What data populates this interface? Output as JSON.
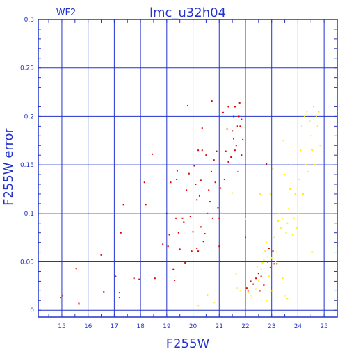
{
  "chart_data": {
    "type": "scatter",
    "title": "lmc_u32h04",
    "subtitle": "WF2",
    "xlabel": "F255W",
    "ylabel": "F255W error",
    "xlim": [
      14.1,
      25.5
    ],
    "ylim": [
      -0.007,
      0.3
    ],
    "grid": true,
    "x_ticks": [
      15,
      16,
      17,
      18,
      19,
      20,
      21,
      22,
      23,
      24,
      25
    ],
    "y_ticks": [
      0,
      0.05,
      0.1,
      0.15,
      0.2,
      0.25,
      0.3
    ],
    "y_tick_labels": [
      "0",
      "0.05",
      "0.1",
      "0.15",
      "0.2",
      "0.25",
      "0.3"
    ],
    "colors": {
      "axes": "#2233cc",
      "grid": "#2233cc",
      "text": "#2233cc",
      "red": "#dd0000",
      "yellow": "#ffee00"
    },
    "series": [
      {
        "color": "#dd0000",
        "points": [
          [
            14.95,
            0.013
          ],
          [
            15.03,
            0.015
          ],
          [
            15.55,
            0.043
          ],
          [
            15.65,
            0.007
          ],
          [
            16.5,
            0.057
          ],
          [
            16.6,
            0.019
          ],
          [
            17.05,
            0.035
          ],
          [
            17.2,
            0.018
          ],
          [
            17.2,
            0.013
          ],
          [
            17.25,
            0.08
          ],
          [
            17.35,
            0.109
          ],
          [
            17.75,
            0.033
          ],
          [
            17.95,
            0.032
          ],
          [
            18.15,
            0.132
          ],
          [
            18.2,
            0.109
          ],
          [
            18.45,
            0.161
          ],
          [
            18.55,
            0.033
          ],
          [
            18.85,
            0.068
          ],
          [
            19.0,
            0.1
          ],
          [
            19.05,
            0.066
          ],
          [
            19.1,
            0.078
          ],
          [
            19.15,
            0.132
          ],
          [
            19.25,
            0.042
          ],
          [
            19.3,
            0.031
          ],
          [
            19.35,
            0.095
          ],
          [
            19.38,
            0.135
          ],
          [
            19.4,
            0.144
          ],
          [
            19.45,
            0.08
          ],
          [
            19.5,
            0.063
          ],
          [
            19.6,
            0.095
          ],
          [
            19.65,
            0.091
          ],
          [
            19.7,
            0.049
          ],
          [
            19.75,
            0.124
          ],
          [
            19.8,
            0.211
          ],
          [
            19.85,
            0.141
          ],
          [
            19.9,
            0.097
          ],
          [
            19.95,
            0.061
          ],
          [
            20.0,
            0.081
          ],
          [
            20.05,
            0.149
          ],
          [
            20.1,
            0.13
          ],
          [
            20.15,
            0.064
          ],
          [
            20.15,
            0.114
          ],
          [
            20.2,
            0.165
          ],
          [
            20.2,
            0.061
          ],
          [
            20.25,
            0.118
          ],
          [
            20.3,
            0.086
          ],
          [
            20.3,
            0.134
          ],
          [
            20.35,
            0.188
          ],
          [
            20.35,
            0.165
          ],
          [
            20.4,
            0.071
          ],
          [
            20.45,
            0.079
          ],
          [
            20.5,
            0.16
          ],
          [
            20.55,
            0.1
          ],
          [
            20.6,
            0.124
          ],
          [
            20.65,
            0.112
          ],
          [
            20.7,
            0.143
          ],
          [
            20.72,
            0.216
          ],
          [
            20.75,
            0.095
          ],
          [
            20.8,
            0.155
          ],
          [
            20.85,
            0.132
          ],
          [
            20.9,
            0.164
          ],
          [
            20.95,
            0.106
          ],
          [
            21.0,
            0.095
          ],
          [
            21.0,
            0.066
          ],
          [
            21.05,
            0.126
          ],
          [
            21.1,
            0.1
          ],
          [
            21.15,
            0.204
          ],
          [
            21.2,
            0.135
          ],
          [
            21.25,
            0.164
          ],
          [
            21.3,
            0.187
          ],
          [
            21.35,
            0.21
          ],
          [
            21.35,
            0.153
          ],
          [
            21.45,
            0.158
          ],
          [
            21.5,
            0.185
          ],
          [
            21.55,
            0.2
          ],
          [
            21.55,
            0.177
          ],
          [
            21.6,
            0.21
          ],
          [
            21.6,
            0.165
          ],
          [
            21.65,
            0.17
          ],
          [
            21.7,
            0.19
          ],
          [
            21.72,
            0.143
          ],
          [
            21.75,
            0.2
          ],
          [
            21.78,
            0.214
          ],
          [
            21.8,
            0.19
          ],
          [
            21.85,
            0.16
          ],
          [
            21.85,
            0.197
          ],
          [
            21.9,
            0.176
          ],
          [
            22.0,
            0.075
          ],
          [
            22.05,
            0.023
          ],
          [
            22.1,
            0.02
          ],
          [
            22.2,
            0.03
          ],
          [
            22.3,
            0.027
          ],
          [
            22.4,
            0.033
          ],
          [
            22.5,
            0.038
          ],
          [
            22.55,
            0.02
          ],
          [
            22.6,
            0.035
          ],
          [
            22.7,
            0.026
          ],
          [
            22.8,
            0.151
          ],
          [
            22.85,
            0.05
          ],
          [
            22.9,
            0.064
          ],
          [
            22.95,
            0.044
          ],
          [
            23.05,
            0.061
          ],
          [
            23.1,
            0.048
          ],
          [
            23.2,
            0.048
          ]
        ]
      },
      {
        "color": "#ffee00",
        "points": [
          [
            20.2,
            0.005
          ],
          [
            20.55,
            0.016
          ],
          [
            20.8,
            0.008
          ],
          [
            21.1,
            0.1
          ],
          [
            21.5,
            0.121
          ],
          [
            21.65,
            0.038
          ],
          [
            21.7,
            0.023
          ],
          [
            21.8,
            0.02
          ],
          [
            22.0,
            0.094
          ],
          [
            22.1,
            0.018
          ],
          [
            22.2,
            0.015
          ],
          [
            22.25,
            0.013
          ],
          [
            22.4,
            0.022
          ],
          [
            22.45,
            0.045
          ],
          [
            22.5,
            0.03
          ],
          [
            22.6,
            0.042
          ],
          [
            22.65,
            0.049
          ],
          [
            22.7,
            0.052
          ],
          [
            22.75,
            0.061
          ],
          [
            22.8,
            0.07
          ],
          [
            22.85,
            0.055
          ],
          [
            22.9,
            0.035
          ],
          [
            22.95,
            0.12
          ],
          [
            23.0,
            0.054
          ],
          [
            23.05,
            0.146
          ],
          [
            23.1,
            0.075
          ],
          [
            23.15,
            0.05
          ],
          [
            23.2,
            0.06
          ],
          [
            23.25,
            0.092
          ],
          [
            23.3,
            0.1
          ],
          [
            23.35,
            0.085
          ],
          [
            23.4,
            0.095
          ],
          [
            23.45,
            0.175
          ],
          [
            23.5,
            0.14
          ],
          [
            23.55,
            0.08
          ],
          [
            23.6,
            0.09
          ],
          [
            23.65,
            0.105
          ],
          [
            23.7,
            0.125
          ],
          [
            23.75,
            0.15
          ],
          [
            23.8,
            0.078
          ],
          [
            23.85,
            0.095
          ],
          [
            23.9,
            0.12
          ],
          [
            23.95,
            0.085
          ],
          [
            24.0,
            0.1
          ],
          [
            24.05,
            0.135
          ],
          [
            24.1,
            0.165
          ],
          [
            24.15,
            0.19
          ],
          [
            24.2,
            0.12
          ],
          [
            24.25,
            0.2
          ],
          [
            24.3,
            0.15
          ],
          [
            24.35,
            0.205
          ],
          [
            24.4,
            0.143
          ],
          [
            24.45,
            0.195
          ],
          [
            24.5,
            0.18
          ],
          [
            24.55,
            0.165
          ],
          [
            24.6,
            0.21
          ],
          [
            24.65,
            0.15
          ],
          [
            24.7,
            0.2
          ],
          [
            24.75,
            0.19
          ],
          [
            24.8,
            0.205
          ],
          [
            24.85,
            0.17
          ],
          [
            23.42,
            0.033
          ],
          [
            23.5,
            0.015
          ],
          [
            23.6,
            0.012
          ],
          [
            23.0,
            0.02
          ],
          [
            22.8,
            0.01
          ],
          [
            24.55,
            0.06
          ],
          [
            22.55,
            0.12
          ]
        ]
      }
    ]
  }
}
